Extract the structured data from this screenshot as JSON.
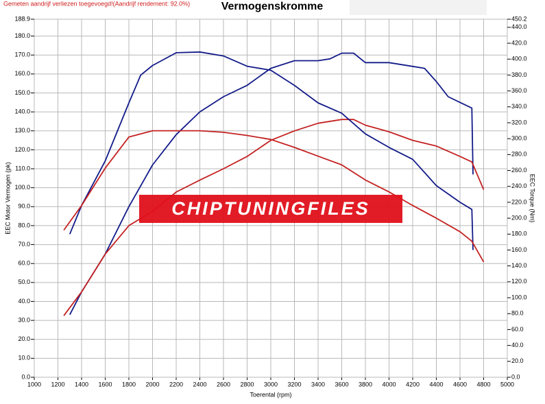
{
  "chart_data": {
    "type": "line",
    "note": "Gemeten aandrijf verliezen toegevoegd!(Aandrijf rendement: 92.0%)",
    "title": "Vermogenskromme",
    "xlabel": "Toerental (rpm)",
    "ylabel": "EEC Motor Vermogen (pk)",
    "y2label": "EEC Torque (Nm)",
    "watermark": "CHIPTUNINGFILES",
    "grid": true,
    "xlim": [
      1000,
      5000
    ],
    "xticks": [
      1000,
      1200,
      1400,
      1600,
      1800,
      2000,
      2200,
      2400,
      2600,
      2800,
      3000,
      3200,
      3400,
      3600,
      3800,
      4000,
      4200,
      4400,
      4600,
      4800,
      5000
    ],
    "ylim": [
      0,
      188.9
    ],
    "yticks": [
      {
        "value": 0,
        "label": "0.0"
      },
      {
        "value": 10,
        "label": "10.0"
      },
      {
        "value": 20,
        "label": "20.0"
      },
      {
        "value": 30,
        "label": "30.0"
      },
      {
        "value": 40,
        "label": "40.0"
      },
      {
        "value": 50,
        "label": "50.0"
      },
      {
        "value": 60,
        "label": "60.0"
      },
      {
        "value": 70,
        "label": "70.0"
      },
      {
        "value": 80,
        "label": "80.0"
      },
      {
        "value": 90,
        "label": "90.0"
      },
      {
        "value": 100,
        "label": "100.0"
      },
      {
        "value": 110,
        "label": "110.0"
      },
      {
        "value": 120,
        "label": "120.0"
      },
      {
        "value": 130,
        "label": "130.0"
      },
      {
        "value": 140,
        "label": "140.0"
      },
      {
        "value": 150,
        "label": "150.0"
      },
      {
        "value": 160,
        "label": "160.0"
      },
      {
        "value": 170,
        "label": "170.0"
      },
      {
        "value": 180,
        "label": "180.0"
      },
      188.9
    ],
    "y2lim": [
      0,
      450.2
    ],
    "y2ticks": [
      {
        "value": 0,
        "label": "0.0"
      },
      {
        "value": 20,
        "label": "20.0"
      },
      {
        "value": 40,
        "label": "40.0"
      },
      {
        "value": 60,
        "label": "60.0"
      },
      {
        "value": 80,
        "label": "80.0"
      },
      {
        "value": 100,
        "label": "100.0"
      },
      {
        "value": 120,
        "label": "120.0"
      },
      {
        "value": 140,
        "label": "140.0"
      },
      {
        "value": 160,
        "label": "160.0"
      },
      {
        "value": 180,
        "label": "180.0"
      },
      {
        "value": 200,
        "label": "200.0"
      },
      {
        "value": 220,
        "label": "220.0"
      },
      {
        "value": 240,
        "label": "240.0"
      },
      {
        "value": 260,
        "label": "260.0"
      },
      {
        "value": 280,
        "label": "280.0"
      },
      {
        "value": 300,
        "label": "300.0"
      },
      {
        "value": 320,
        "label": "320.0"
      },
      {
        "value": 340,
        "label": "340.0"
      },
      {
        "value": 360,
        "label": "360.0"
      },
      {
        "value": 380,
        "label": "380.0"
      },
      {
        "value": 400,
        "label": "400.0"
      },
      {
        "value": 420,
        "label": "420.0"
      },
      {
        "value": 440,
        "label": "440.0"
      },
      450.2
    ],
    "series": [
      {
        "color": "#121a88",
        "x": [
          1300,
          1400,
          1600,
          1800,
          2000,
          2200,
          2400,
          2600,
          2800,
          3000,
          3200,
          3400,
          3500,
          3600,
          3700,
          3800,
          4000,
          4200,
          4300,
          4400,
          4500,
          4600,
          4700,
          4710
        ],
        "values": [
          33,
          45,
          65,
          90,
          112,
          128,
          140,
          148,
          154,
          163,
          167,
          167,
          168,
          171,
          171,
          166,
          166,
          164,
          163,
          156,
          148,
          145,
          142,
          107
        ]
      },
      {
        "color": "#c42020",
        "x": [
          1250,
          1400,
          1600,
          1800,
          2000,
          2200,
          2400,
          2600,
          2800,
          3000,
          3200,
          3400,
          3600,
          3700,
          3800,
          4000,
          4200,
          4400,
          4600,
          4700,
          4800
        ],
        "values": [
          32.5,
          45,
          65,
          80,
          87.5,
          97.7,
          104,
          110,
          116.5,
          125,
          130,
          134,
          136,
          136,
          133,
          129.5,
          125,
          122,
          116.5,
          113.6,
          99
        ]
      },
      {
        "color": "#121a88",
        "axis": "y2",
        "x": [
          1300,
          1400,
          1600,
          1800,
          1900,
          2000,
          2200,
          2400,
          2600,
          2800,
          3000,
          3200,
          3400,
          3600,
          3800,
          4000,
          4200,
          4400,
          4600,
          4700,
          4710
        ],
        "values": [
          180,
          216,
          272,
          345,
          380,
          392,
          408,
          409,
          404,
          391,
          386,
          367,
          345,
          332,
          306,
          289,
          274,
          241,
          220,
          211,
          160
        ]
      },
      {
        "color": "#c42020",
        "axis": "y2",
        "x": [
          1250,
          1400,
          1600,
          1800,
          2000,
          2200,
          2400,
          2600,
          2800,
          3000,
          3200,
          3400,
          3600,
          3800,
          4000,
          4200,
          4400,
          4600,
          4700,
          4800
        ],
        "values": [
          185,
          216,
          263,
          302,
          310,
          310,
          310,
          308,
          304,
          299,
          289,
          278,
          267,
          248,
          233,
          216,
          200,
          183,
          171,
          145
        ]
      }
    ]
  }
}
